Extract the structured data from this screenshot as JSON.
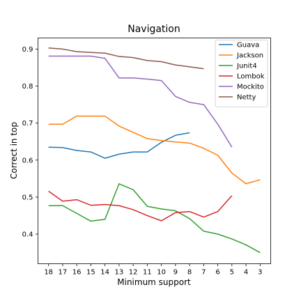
{
  "chart_data": {
    "type": "line",
    "title": "Navigation",
    "xlabel": "Minimum support",
    "ylabel": "Correct in top",
    "x": [
      18,
      17,
      16,
      15,
      14,
      13,
      12,
      11,
      10,
      9,
      8,
      7,
      6,
      5,
      4,
      3
    ],
    "x_reversed": true,
    "ylim": [
      0.32,
      0.93
    ],
    "yticks": [
      0.4,
      0.5,
      0.6,
      0.7,
      0.8,
      0.9
    ],
    "ytick_labels": [
      "0.4",
      "0.5",
      "0.6",
      "0.7",
      "0.8",
      "0.9"
    ],
    "xtick_labels": [
      "18",
      "17",
      "16",
      "15",
      "14",
      "13",
      "12",
      "11",
      "10",
      "9",
      "8",
      "7",
      "6",
      "5",
      "4",
      "3"
    ],
    "grid": false,
    "legend_position": "top-right",
    "series": [
      {
        "name": "Guava",
        "color": "#1f77b4",
        "values": [
          0.635,
          0.634,
          0.626,
          0.622,
          0.605,
          0.616,
          0.622,
          0.622,
          0.648,
          0.667,
          0.674,
          null,
          null,
          null,
          null,
          null
        ]
      },
      {
        "name": "Jackson",
        "color": "#ff7f0e",
        "values": [
          0.697,
          0.697,
          0.719,
          0.719,
          0.719,
          0.692,
          0.675,
          0.658,
          0.653,
          0.649,
          0.646,
          0.632,
          0.613,
          0.565,
          0.536,
          0.547
        ]
      },
      {
        "name": "Junit4",
        "color": "#2ca02c",
        "values": [
          0.477,
          0.477,
          0.456,
          0.435,
          0.44,
          0.536,
          0.52,
          0.475,
          0.468,
          0.463,
          0.442,
          0.408,
          0.4,
          0.387,
          0.371,
          0.35
        ]
      },
      {
        "name": "Lombok",
        "color": "#d62728",
        "values": [
          0.516,
          0.489,
          0.493,
          0.478,
          0.48,
          0.477,
          0.466,
          0.45,
          0.436,
          0.458,
          0.461,
          0.446,
          0.461,
          0.504,
          null,
          null
        ]
      },
      {
        "name": "Mockito",
        "color": "#9467bd",
        "values": [
          0.881,
          0.881,
          0.881,
          0.881,
          0.875,
          0.822,
          0.822,
          0.819,
          0.815,
          0.772,
          0.756,
          0.75,
          0.697,
          0.635,
          null,
          null
        ]
      },
      {
        "name": "Netty",
        "color": "#8c564b",
        "values": [
          0.903,
          0.9,
          0.893,
          0.891,
          0.889,
          0.88,
          0.877,
          0.869,
          0.866,
          0.857,
          0.852,
          0.847,
          null,
          null,
          null,
          null
        ]
      }
    ]
  }
}
